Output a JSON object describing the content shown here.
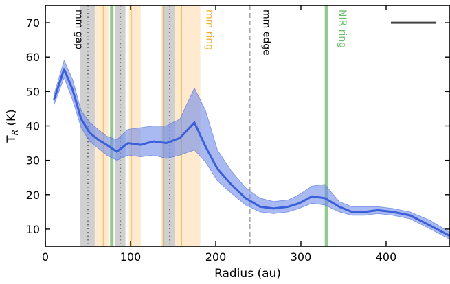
{
  "chart_data": {
    "type": "line",
    "title": "",
    "xlabel": "Radius (au)",
    "ylabel": "T",
    "ylabel_sub": "R",
    "ylabel_unit": " (K)",
    "xlim": [
      0,
      475
    ],
    "ylim": [
      5,
      75
    ],
    "xticks": [
      0,
      100,
      200,
      300,
      400
    ],
    "yticks": [
      10,
      20,
      30,
      40,
      50,
      60,
      70
    ],
    "grid": false,
    "legend": "none",
    "colors": {
      "line": "#3a5fd9",
      "band": "#6f8ae8",
      "gap": "#b0b0b0",
      "ring": "#ffd9a8",
      "ring_line": "#f5c060",
      "nir": "#7fbf7a",
      "edge": "#aaaaaa",
      "scalebar": "#444444",
      "mm_ring_text": "#f0b030",
      "nir_text": "#6dbd6d"
    },
    "series": [
      {
        "x": [
          10,
          22,
          32,
          42,
          52,
          62,
          72,
          84,
          97,
          112,
          127,
          142,
          158,
          175,
          188,
          202,
          218,
          235,
          252,
          268,
          285,
          298,
          313,
          328,
          345,
          360,
          375,
          390,
          408,
          428,
          452,
          475
        ],
        "values": [
          47.5,
          56.5,
          50.5,
          42.0,
          38.0,
          36.0,
          34.5,
          32.5,
          35.0,
          34.5,
          35.5,
          35.0,
          36.5,
          41.0,
          34.0,
          27.5,
          23.0,
          19.0,
          16.5,
          16.0,
          16.5,
          17.5,
          19.5,
          19.0,
          16.5,
          15.0,
          15.0,
          15.5,
          15.0,
          14.0,
          11.0,
          8.0
        ],
        "upper": [
          49.0,
          59.0,
          53.5,
          44.5,
          41.0,
          39.0,
          37.0,
          36.0,
          39.0,
          39.5,
          40.0,
          40.0,
          42.0,
          51.0,
          44.5,
          33.0,
          27.0,
          22.0,
          19.0,
          18.0,
          18.5,
          20.0,
          22.5,
          23.0,
          18.0,
          16.5,
          16.5,
          16.5,
          16.0,
          15.0,
          12.5,
          9.0
        ],
        "lower": [
          46.0,
          54.0,
          47.5,
          39.5,
          35.5,
          33.5,
          31.5,
          30.0,
          31.5,
          31.0,
          31.5,
          30.5,
          31.5,
          33.0,
          29.5,
          24.0,
          20.5,
          17.0,
          15.0,
          14.5,
          15.0,
          16.0,
          17.5,
          17.0,
          15.0,
          14.0,
          14.0,
          14.5,
          14.0,
          13.0,
          10.0,
          7.0
        ]
      }
    ],
    "gaps": [
      {
        "x0": 41,
        "x1": 58,
        "center": 50
      },
      {
        "x0": 82,
        "x1": 94,
        "center": 88
      },
      {
        "x0": 138,
        "x1": 152,
        "center": 146
      }
    ],
    "rings": [
      {
        "x0": 59,
        "x1": 74,
        "center": 68
      },
      {
        "x0": 98,
        "x1": 112,
        "center": 101
      },
      {
        "x0": 136,
        "x1": 140,
        "center": 138
      },
      {
        "x0": 152,
        "x1": 182,
        "center": 160
      }
    ],
    "nir_rings": [
      78,
      330
    ],
    "mm_edge": 240,
    "annotations": [
      {
        "text": "mm gap",
        "x": 32,
        "kind": "gap"
      },
      {
        "text": "mm ring",
        "x": 185,
        "kind": "ring"
      },
      {
        "text": "mm edge",
        "x": 252,
        "kind": "edge"
      },
      {
        "text": "NIR ring",
        "x": 341,
        "kind": "nir"
      }
    ]
  }
}
